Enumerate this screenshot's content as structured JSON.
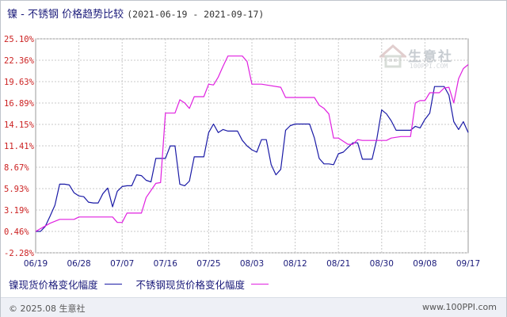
{
  "header": {
    "title": "镍 - 不锈钢 价格趋势比较",
    "range": "(2021-06-19 - 2021-09-17)"
  },
  "watermark": {
    "text": "生意社",
    "sub": "100PPI.COM"
  },
  "footer": {
    "copyright": "© 2025.08 生意社",
    "url": "www.100PPI.com"
  },
  "colors": {
    "nickel": "#1a1aa6",
    "steel": "#e020e0",
    "axis_label": "#cc2222",
    "grid": "#c8c8c8"
  },
  "chart_data": {
    "type": "line",
    "title": "镍 - 不锈钢 价格趋势比较",
    "xlabel": "",
    "ylabel": "",
    "x_ticks": [
      "06/19",
      "06/28",
      "07/07",
      "07/16",
      "07/25",
      "08/03",
      "08/12",
      "08/21",
      "08/30",
      "09/08",
      "09/17"
    ],
    "y_ticks": [
      "25.10%",
      "22.36%",
      "19.63%",
      "16.89%",
      "14.15%",
      "11.41%",
      "8.67%",
      "5.93%",
      "3.19%",
      "0.46%",
      "-2.28%"
    ],
    "ylim": [
      -2.28,
      25.1
    ],
    "x_range": [
      "2021-06-19",
      "2021-09-17"
    ],
    "grid": true,
    "legend_position": "bottom",
    "series": [
      {
        "name": "镍现货价格变化幅度",
        "color": "#1a1aa6",
        "x": [
          "2021-06-19",
          "2021-06-20",
          "2021-06-21",
          "2021-06-22",
          "2021-06-23",
          "2021-06-24",
          "2021-06-25",
          "2021-06-26",
          "2021-06-27",
          "2021-06-28",
          "2021-06-29",
          "2021-06-30",
          "2021-07-01",
          "2021-07-02",
          "2021-07-03",
          "2021-07-04",
          "2021-07-05",
          "2021-07-06",
          "2021-07-07",
          "2021-07-08",
          "2021-07-09",
          "2021-07-10",
          "2021-07-11",
          "2021-07-12",
          "2021-07-13",
          "2021-07-14",
          "2021-07-15",
          "2021-07-16",
          "2021-07-17",
          "2021-07-18",
          "2021-07-19",
          "2021-07-20",
          "2021-07-21",
          "2021-07-22",
          "2021-07-23",
          "2021-07-24",
          "2021-07-25",
          "2021-07-26",
          "2021-07-27",
          "2021-07-28",
          "2021-07-29",
          "2021-07-30",
          "2021-07-31",
          "2021-08-01",
          "2021-08-02",
          "2021-08-03",
          "2021-08-04",
          "2021-08-05",
          "2021-08-06",
          "2021-08-07",
          "2021-08-08",
          "2021-08-09",
          "2021-08-10",
          "2021-08-11",
          "2021-08-12",
          "2021-08-13",
          "2021-08-14",
          "2021-08-15",
          "2021-08-16",
          "2021-08-17",
          "2021-08-18",
          "2021-08-19",
          "2021-08-20",
          "2021-08-21",
          "2021-08-22",
          "2021-08-23",
          "2021-08-24",
          "2021-08-25",
          "2021-08-26",
          "2021-08-27",
          "2021-08-28",
          "2021-08-29",
          "2021-08-30",
          "2021-08-31",
          "2021-09-01",
          "2021-09-02",
          "2021-09-03",
          "2021-09-04",
          "2021-09-05",
          "2021-09-06",
          "2021-09-07",
          "2021-09-08",
          "2021-09-09",
          "2021-09-10",
          "2021-09-11",
          "2021-09-12",
          "2021-09-13",
          "2021-09-14",
          "2021-09-15",
          "2021-09-16",
          "2021-09-17"
        ],
        "y": [
          0.46,
          0.46,
          1.1,
          2.4,
          3.8,
          6.5,
          6.5,
          6.4,
          5.4,
          5.0,
          4.9,
          4.2,
          4.1,
          4.1,
          5.3,
          6.0,
          3.6,
          5.6,
          6.2,
          6.3,
          6.3,
          7.7,
          7.6,
          7.0,
          6.8,
          9.8,
          9.8,
          9.8,
          11.4,
          11.4,
          6.5,
          6.3,
          6.9,
          10.0,
          10.0,
          10.0,
          13.1,
          14.2,
          13.1,
          13.5,
          13.3,
          13.3,
          13.3,
          12.1,
          11.4,
          10.9,
          10.6,
          12.2,
          12.2,
          9.0,
          7.7,
          8.4,
          13.4,
          14.0,
          14.2,
          14.2,
          14.2,
          14.2,
          12.4,
          9.8,
          9.1,
          9.1,
          9.0,
          10.4,
          10.6,
          11.2,
          11.8,
          11.8,
          9.7,
          9.7,
          9.7,
          12.3,
          16.0,
          15.5,
          14.6,
          13.4,
          13.4,
          13.4,
          13.4,
          13.9,
          13.7,
          14.8,
          15.6,
          19.0,
          19.0,
          19.0,
          17.9,
          14.5,
          13.5,
          14.5,
          13.1
        ]
      },
      {
        "name": "不锈钢现货价格变化幅度",
        "color": "#e020e0",
        "x": [
          "2021-06-19",
          "2021-06-22",
          "2021-06-24",
          "2021-06-27",
          "2021-06-28",
          "2021-07-01",
          "2021-07-05",
          "2021-07-06",
          "2021-07-07",
          "2021-07-08",
          "2021-07-11",
          "2021-07-12",
          "2021-07-14",
          "2021-07-15",
          "2021-07-16",
          "2021-07-17",
          "2021-07-18",
          "2021-07-19",
          "2021-07-20",
          "2021-07-21",
          "2021-07-22",
          "2021-07-24",
          "2021-07-25",
          "2021-07-26",
          "2021-07-27",
          "2021-07-28",
          "2021-07-29",
          "2021-07-31",
          "2021-08-01",
          "2021-08-02",
          "2021-08-03",
          "2021-08-05",
          "2021-08-06",
          "2021-08-09",
          "2021-08-10",
          "2021-08-11",
          "2021-08-16",
          "2021-08-17",
          "2021-08-18",
          "2021-08-19",
          "2021-08-20",
          "2021-08-21",
          "2021-08-23",
          "2021-08-24",
          "2021-08-25",
          "2021-08-26",
          "2021-08-31",
          "2021-09-01",
          "2021-09-03",
          "2021-09-04",
          "2021-09-05",
          "2021-09-06",
          "2021-09-07",
          "2021-09-08",
          "2021-09-09",
          "2021-09-11",
          "2021-09-12",
          "2021-09-13",
          "2021-09-14",
          "2021-09-15",
          "2021-09-16",
          "2021-09-17"
        ],
        "y": [
          0.46,
          1.5,
          2.0,
          2.0,
          2.3,
          2.3,
          2.3,
          1.6,
          1.6,
          2.8,
          2.8,
          4.8,
          6.6,
          6.7,
          15.6,
          15.6,
          15.6,
          17.3,
          16.9,
          16.2,
          17.7,
          17.7,
          19.3,
          19.2,
          20.2,
          21.6,
          22.9,
          22.9,
          22.9,
          22.2,
          19.3,
          19.3,
          19.2,
          18.9,
          17.6,
          17.6,
          17.6,
          16.6,
          16.2,
          15.5,
          12.4,
          12.4,
          11.6,
          11.6,
          12.2,
          12.1,
          12.1,
          12.4,
          12.6,
          12.6,
          12.6,
          16.9,
          17.2,
          17.2,
          18.2,
          18.2,
          18.8,
          18.9,
          16.9,
          20.0,
          21.3,
          21.8
        ]
      }
    ]
  }
}
